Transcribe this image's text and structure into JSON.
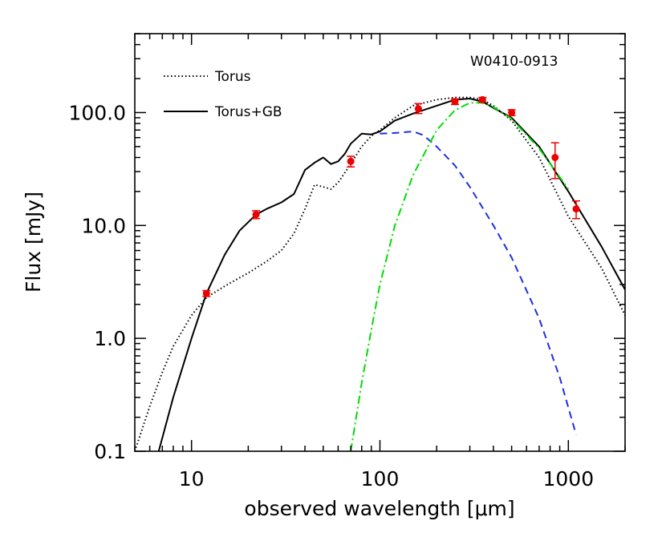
{
  "chart_data": {
    "type": "scatter",
    "title": "",
    "annotation": "W0410-0913",
    "xlabel": "observed wavelength [μm]",
    "ylabel": "Flux [mJy]",
    "xscale": "log",
    "yscale": "log",
    "xlim": [
      5,
      2000
    ],
    "ylim": [
      0.1,
      500
    ],
    "x_ticks": [
      10,
      100,
      1000
    ],
    "x_tick_labels": [
      "10",
      "100",
      "1000"
    ],
    "y_ticks": [
      0.1,
      1,
      10,
      100
    ],
    "y_tick_labels": [
      "0.1",
      "1.0",
      "10.0",
      "100.0"
    ],
    "legend_position": "top-left",
    "legend": [
      {
        "label": "Torus",
        "style": "dotted",
        "color": "#000000"
      },
      {
        "label": "Torus+GB",
        "style": "solid",
        "color": "#000000"
      }
    ],
    "series": [
      {
        "name": "Torus",
        "kind": "line",
        "style": "dotted",
        "color": "#000000",
        "x": [
          5,
          6,
          7,
          8,
          10,
          12,
          15,
          20,
          25,
          30,
          35,
          40,
          45,
          50,
          55,
          60,
          70,
          80,
          90,
          100,
          120,
          150,
          200,
          250,
          300,
          350,
          400,
          500,
          700,
          1000,
          1500,
          2000
        ],
        "y": [
          0.1,
          0.25,
          0.5,
          0.85,
          1.6,
          2.3,
          2.9,
          3.8,
          4.8,
          6.0,
          8.5,
          14,
          23,
          22,
          21,
          24,
          35,
          50,
          62,
          70,
          90,
          115,
          130,
          136,
          136,
          130,
          115,
          85,
          40,
          12,
          4.2,
          1.6
        ]
      },
      {
        "name": "Torus+GB",
        "kind": "line",
        "style": "solid",
        "color": "#000000",
        "x": [
          6.7,
          8,
          10,
          12,
          15,
          18,
          22,
          25,
          30,
          35,
          40,
          45,
          50,
          55,
          60,
          65,
          70,
          80,
          90,
          100,
          120,
          150,
          200,
          250,
          300,
          350,
          400,
          500,
          700,
          1000,
          1500,
          2000
        ],
        "y": [
          0.1,
          0.3,
          1.0,
          2.5,
          5.5,
          9,
          12.5,
          14,
          16,
          19,
          31,
          36,
          40,
          35,
          37,
          43,
          53,
          65,
          64,
          68,
          85,
          98,
          115,
          130,
          133,
          125,
          110,
          90,
          50,
          20,
          6.5,
          2.7
        ]
      },
      {
        "name": "",
        "kind": "line",
        "style": "dashed",
        "color": "#1f2fe0",
        "x": [
          100,
          120,
          150,
          170,
          200,
          250,
          300,
          400,
          500,
          700,
          900,
          1100
        ],
        "y": [
          65,
          66,
          68,
          63,
          50,
          34,
          22,
          10,
          5.2,
          1.5,
          0.45,
          0.14
        ]
      },
      {
        "name": "",
        "kind": "line",
        "style": "dashdot",
        "color": "#00dd00",
        "x": [
          70,
          80,
          90,
          100,
          120,
          150,
          200,
          250,
          300,
          350,
          400,
          500,
          700,
          1000
        ],
        "y": [
          0.1,
          0.4,
          1.2,
          3.0,
          10,
          28,
          70,
          105,
          122,
          122,
          112,
          88,
          48,
          21
        ]
      },
      {
        "name": "",
        "kind": "points",
        "color": "#ee0000",
        "points": [
          {
            "x": 12,
            "y": 2.5,
            "err_lo": 2.35,
            "err_hi": 2.65
          },
          {
            "x": 22,
            "y": 12.5,
            "err_lo": 11.5,
            "err_hi": 13.5
          },
          {
            "x": 70,
            "y": 37,
            "err_lo": 33,
            "err_hi": 41
          },
          {
            "x": 160,
            "y": 108,
            "err_lo": 98,
            "err_hi": 120
          },
          {
            "x": 250,
            "y": 125,
            "err_lo": 118,
            "err_hi": 132
          },
          {
            "x": 350,
            "y": 130,
            "err_lo": 124,
            "err_hi": 136
          },
          {
            "x": 500,
            "y": 100,
            "err_lo": 94,
            "err_hi": 106
          },
          {
            "x": 850,
            "y": 40,
            "err_lo": 26,
            "err_hi": 54
          },
          {
            "x": 1100,
            "y": 14,
            "err_lo": 11.5,
            "err_hi": 16.5
          }
        ]
      }
    ]
  }
}
